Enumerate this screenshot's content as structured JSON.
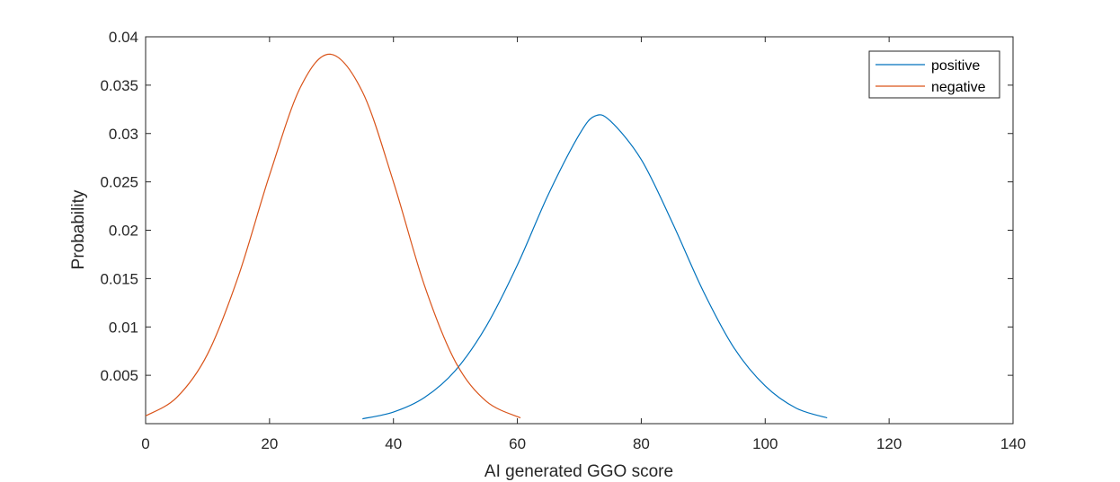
{
  "chart_data": {
    "type": "line",
    "title": "",
    "xlabel": "AI generated GGO score",
    "ylabel": "Probability",
    "xlim": [
      0,
      140
    ],
    "ylim": [
      0,
      0.04
    ],
    "xticks": [
      0,
      20,
      40,
      60,
      80,
      100,
      120,
      140
    ],
    "xtick_labels": [
      "0",
      "20",
      "40",
      "60",
      "80",
      "100",
      "120",
      "140"
    ],
    "yticks": [
      0.005,
      0.01,
      0.015,
      0.02,
      0.025,
      0.03,
      0.035,
      0.04
    ],
    "ytick_labels": [
      "0.005",
      "0.01",
      "0.015",
      "0.02",
      "0.025",
      "0.03",
      "0.035",
      "0.04"
    ],
    "grid": false,
    "legend_position": "top-right",
    "series": [
      {
        "name": "positive",
        "color": "#0072BD",
        "x": [
          35,
          40,
          45,
          50,
          55,
          60,
          65,
          70,
          72.5,
          75,
          80,
          85,
          90,
          95,
          100,
          105,
          110
        ],
        "y": [
          0.0005,
          0.0012,
          0.0027,
          0.0055,
          0.0101,
          0.0164,
          0.0237,
          0.0299,
          0.0318,
          0.0313,
          0.0273,
          0.0208,
          0.0137,
          0.0078,
          0.0039,
          0.0016,
          0.0006
        ]
      },
      {
        "name": "negative",
        "color": "#D95319",
        "x": [
          0,
          5,
          10,
          15,
          20,
          25,
          29.8,
          35,
          40,
          45,
          50,
          55,
          60.5
        ],
        "y": [
          0.0008,
          0.0027,
          0.0072,
          0.0153,
          0.0257,
          0.0348,
          0.0382,
          0.0343,
          0.025,
          0.0143,
          0.0064,
          0.0023,
          0.0006
        ]
      }
    ]
  }
}
